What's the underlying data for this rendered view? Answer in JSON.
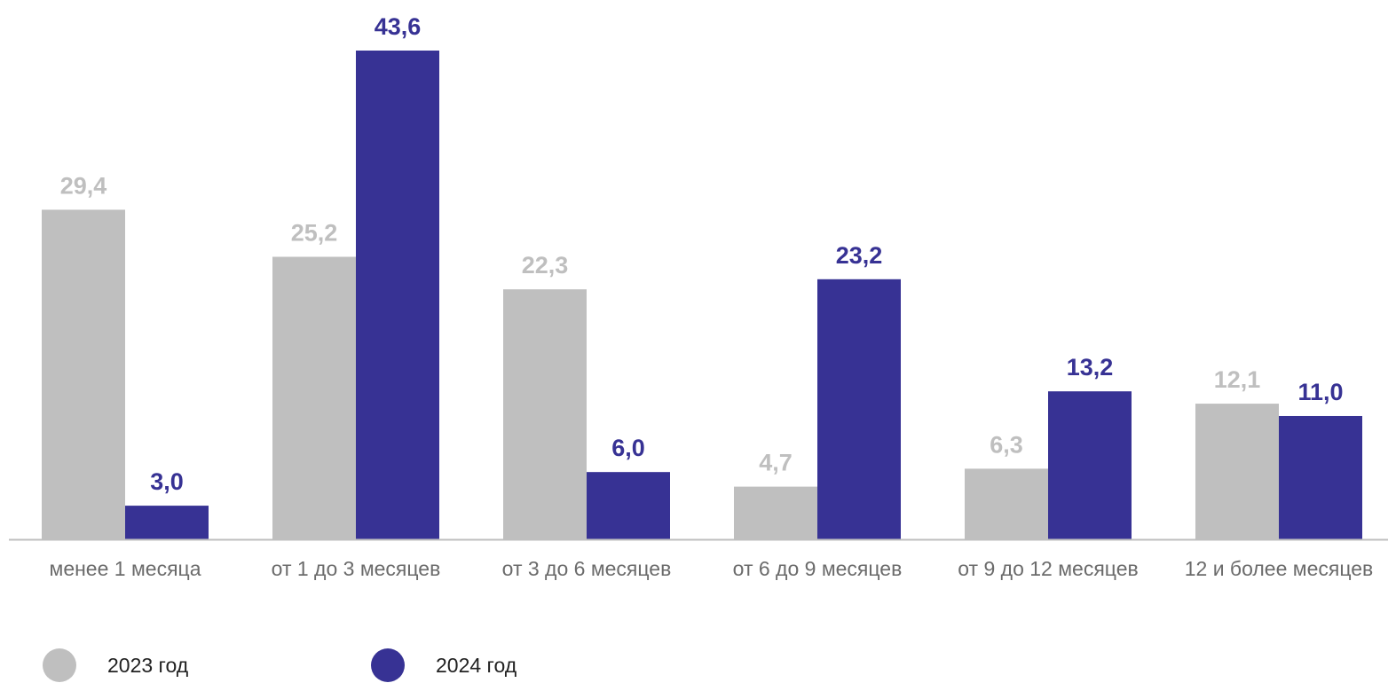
{
  "chart_data": {
    "type": "bar",
    "categories": [
      "менее 1 месяца",
      "от 1 до 3 месяцев",
      "от 3 до 6 месяцев",
      "от 6 до 9 месяцев",
      "от 9 до 12 месяцев",
      "12 и более месяцев"
    ],
    "series": [
      {
        "name": "2023 год",
        "values": [
          29.4,
          25.2,
          22.3,
          4.7,
          6.3,
          12.1
        ],
        "labels": [
          "29,4",
          "25,2",
          "22,3",
          "4,7",
          "6,3",
          "12,1"
        ],
        "color": "#bfbfbf"
      },
      {
        "name": "2024 год",
        "values": [
          3.0,
          43.6,
          6.0,
          23.2,
          13.2,
          11.0
        ],
        "labels": [
          "3,0",
          "43,6",
          "6,0",
          "23,2",
          "13,2",
          "11,0"
        ],
        "color": "#373294"
      }
    ],
    "title": "",
    "xlabel": "",
    "ylabel": "",
    "ylim": [
      0,
      43.6
    ],
    "grid": false,
    "legend_position": "bottom-left",
    "axis_color": "#bfbfbf"
  }
}
